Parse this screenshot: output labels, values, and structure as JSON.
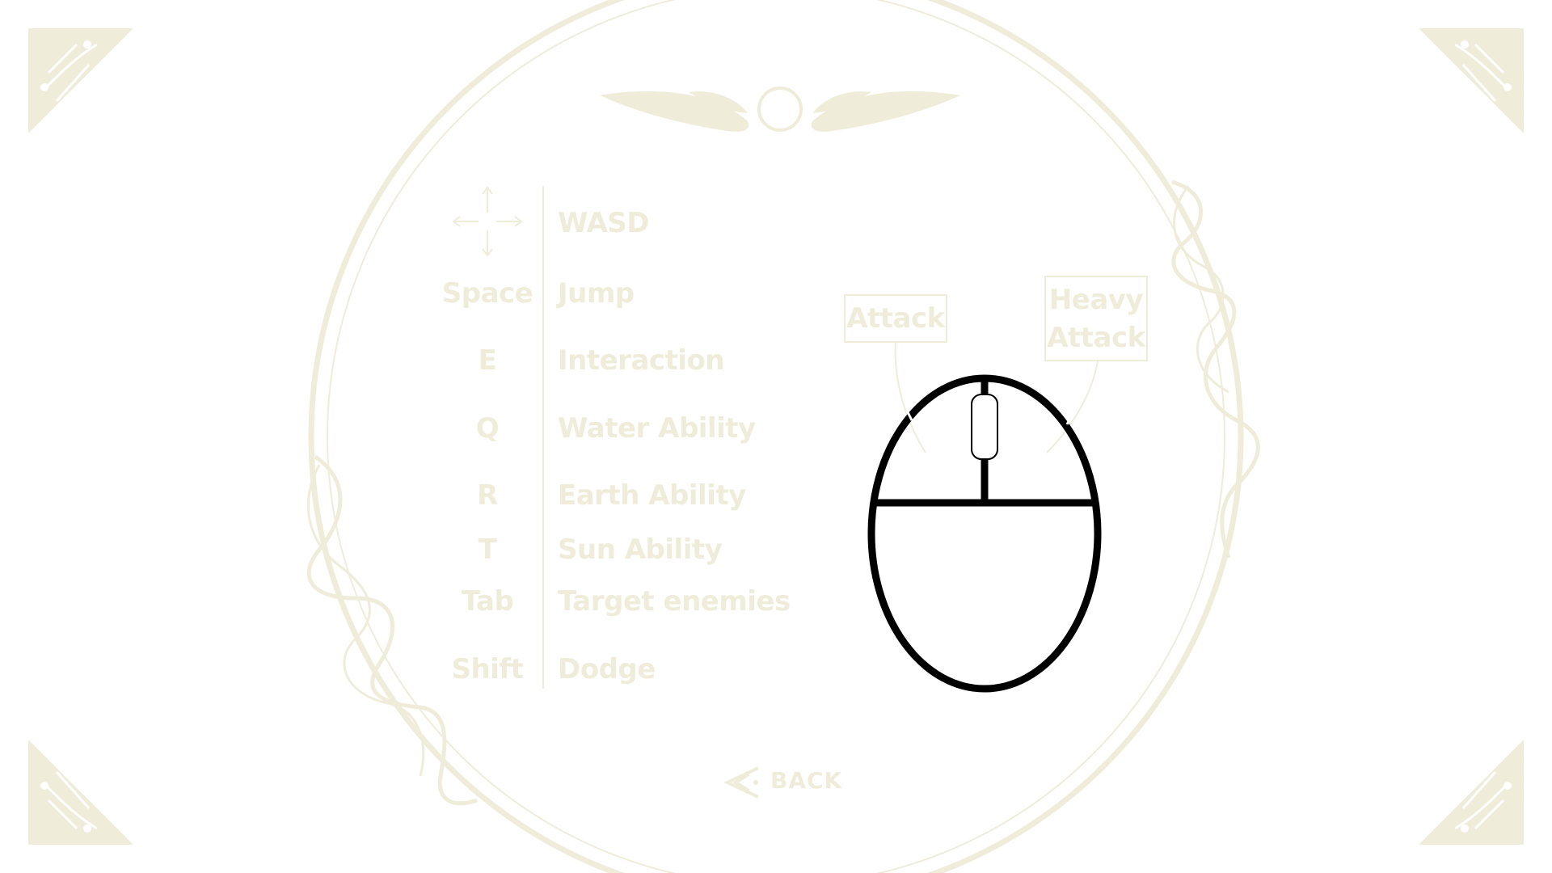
{
  "controls": [
    {
      "key": "",
      "key_icon": "arrows-icon",
      "action": "WASD"
    },
    {
      "key": "Space",
      "action": "Jump"
    },
    {
      "key": "E",
      "action": "Interaction"
    },
    {
      "key": "Q",
      "action": "Water Ability"
    },
    {
      "key": "R",
      "action": "Earth Ability"
    },
    {
      "key": "T",
      "action": "Sun Ability"
    },
    {
      "key": "Tab",
      "action": "Target enemies"
    },
    {
      "key": "Shift",
      "action": "Dodge"
    }
  ],
  "mouse": {
    "left_label": "Attack",
    "right_label_line1": "Heavy",
    "right_label_line2": "Attack",
    "icon": "mouse-icon"
  },
  "back": {
    "label": "BACK",
    "icon": "double-chevron-left-icon"
  },
  "colors": {
    "background": "#ffffff",
    "ornament": "#efedd9",
    "mouse_outline": "#000000"
  }
}
